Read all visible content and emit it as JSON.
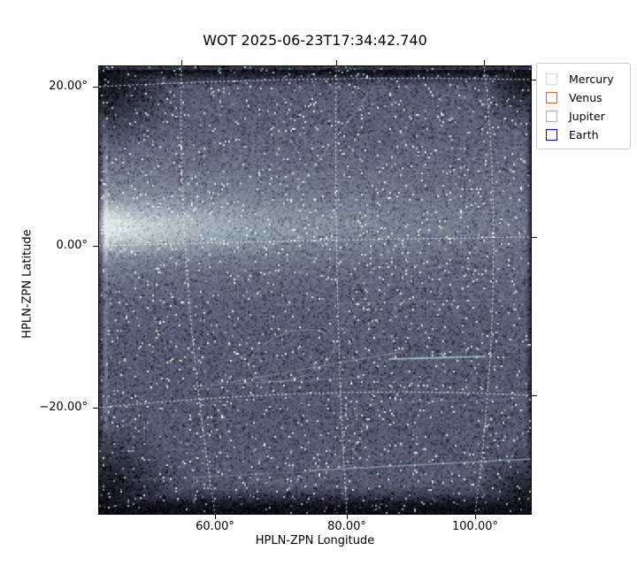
{
  "title": "WOT 2025-06-23T17:34:42.740",
  "axes": {
    "xlabel": "HPLN-ZPN Longitude",
    "ylabel": "HPLN-ZPN Latitude",
    "xticks": [
      "60.00°",
      "80.00°",
      "100.00°"
    ],
    "yticks": [
      "20.00°",
      "0.00°",
      "−20.00°"
    ]
  },
  "legend": {
    "items": [
      {
        "label": "Mercury",
        "color": "#d9d9d9"
      },
      {
        "label": "Venus",
        "color": "#d2691e"
      },
      {
        "label": "Jupiter",
        "color": "#ffa500"
      },
      {
        "label": "Earth",
        "color": "#0000ff"
      }
    ]
  },
  "chart_data": {
    "type": "heatmap",
    "title": "WOT 2025-06-23T17:34:42.740",
    "xlabel": "HPLN-ZPN Longitude",
    "ylabel": "HPLN-ZPN Latitude",
    "xtick_labels": [
      "60.00°",
      "80.00°",
      "100.00°"
    ],
    "ytick_labels": [
      "20.00°",
      "0.00°",
      "−20.00°"
    ],
    "xlim_deg": [
      42,
      109
    ],
    "ylim_deg": [
      -33,
      23
    ],
    "grid": {
      "style": "dotted",
      "color": "#ffffff",
      "meridians_deg": [
        60,
        80,
        100
      ],
      "parallels_deg": [
        20,
        0,
        -20
      ]
    },
    "legend_entries": [
      {
        "label": "Mercury",
        "color": "#d9d9d9"
      },
      {
        "label": "Venus",
        "color": "#d2691e"
      },
      {
        "label": "Jupiter",
        "color": "#ffa500"
      },
      {
        "label": "Earth",
        "color": "#0000ff"
      }
    ],
    "image_description": "Wide-field heliospheric imager frame: noisy slate-blue starfield, dark vignetted borders top/bottom and corners, bright zodiacal-light band near 0° latitude brightest at the left edge, several thin satellite/debris streaks and a faint elliptical loop lower-center, white dotted HPLN-ZPN coordinate grid"
  }
}
